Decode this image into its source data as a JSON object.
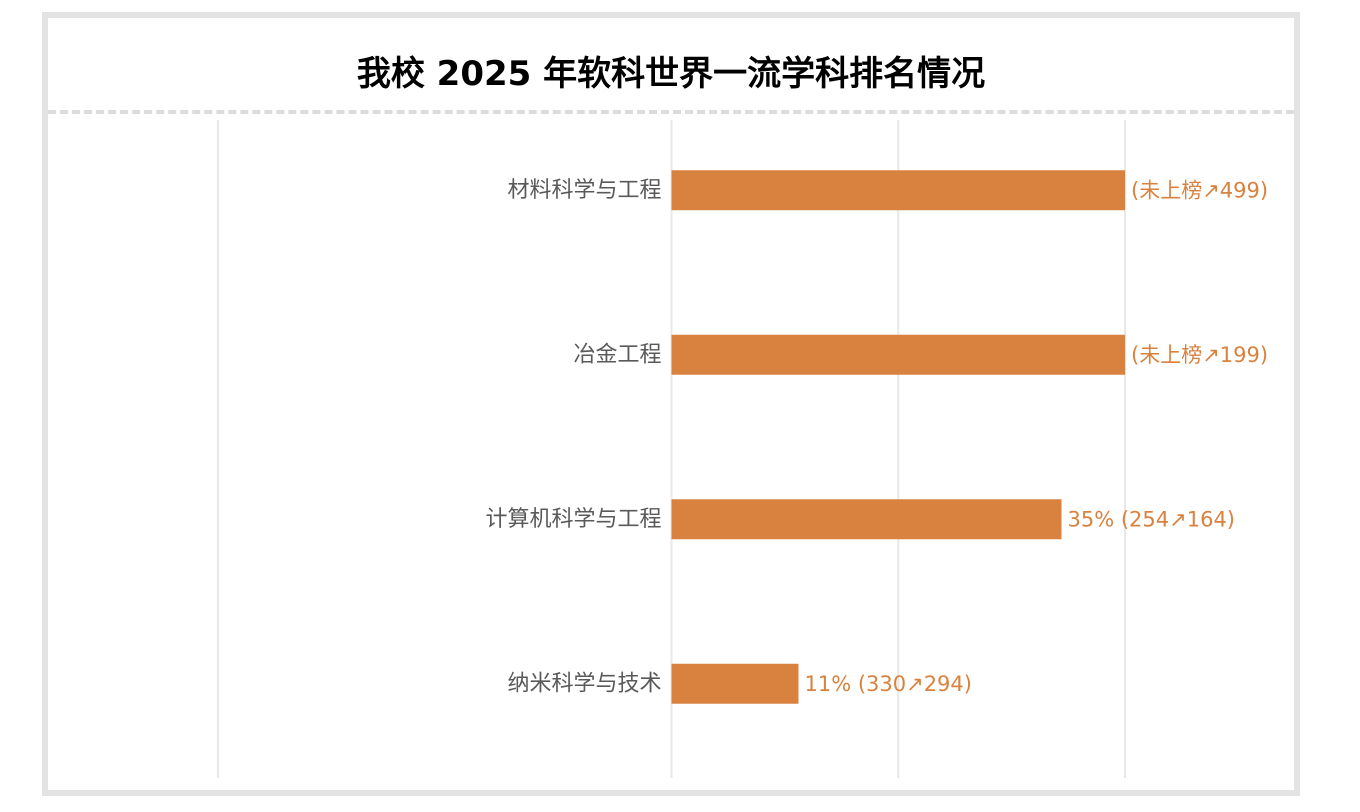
{
  "chart_data": {
    "type": "bar",
    "orientation": "horizontal",
    "title": "我校 2025 年软科世界一流学科排名情况",
    "categories": [
      "材料科学与工程",
      "冶金工程",
      "计算机科学与工程",
      "纳米科学与技术"
    ],
    "values": [
      100,
      100,
      86,
      28
    ],
    "value_labels": [
      "(未上榜↗499)",
      "(未上榜↗199)",
      "35% (254↗164)",
      "11% (330↗294)"
    ],
    "xlim": [
      -100,
      100
    ],
    "grid": true,
    "legend": "none",
    "bar_color": "#d9823f",
    "label_color": "#d9823f",
    "category_color": "#595959",
    "gridline_color": "#e8e8e8"
  }
}
